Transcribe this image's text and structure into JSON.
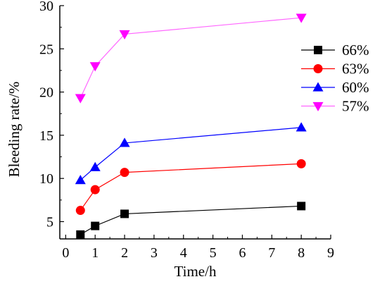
{
  "chart_data": {
    "type": "line",
    "title": "",
    "xlabel": "Time/h",
    "ylabel": "Bleeding rate/%",
    "xlim": [
      -0.2,
      9
    ],
    "ylim": [
      3,
      30
    ],
    "xticks": [
      0,
      1,
      2,
      3,
      4,
      5,
      6,
      7,
      8,
      9
    ],
    "yticks": [
      5,
      10,
      15,
      20,
      25,
      30
    ],
    "grid": false,
    "legend_position": "right",
    "x": [
      0.5,
      1,
      2,
      8
    ],
    "series": [
      {
        "name": "66%",
        "values": [
          3.5,
          4.5,
          5.9,
          6.8
        ],
        "color": "#000000",
        "line_color": "#000000",
        "marker": "square"
      },
      {
        "name": "63%",
        "values": [
          6.3,
          8.7,
          10.7,
          11.7
        ],
        "color": "#ff0000",
        "line_color": "#ff0000",
        "marker": "circle"
      },
      {
        "name": "60%",
        "values": [
          9.8,
          11.3,
          14.1,
          15.9
        ],
        "color": "#0000ff",
        "line_color": "#0000ff",
        "marker": "triangle-up"
      },
      {
        "name": "57%",
        "values": [
          19.3,
          23.0,
          26.7,
          28.6
        ],
        "color": "#ff00ff",
        "line_color": "#ff66ff",
        "marker": "triangle-down"
      }
    ]
  }
}
